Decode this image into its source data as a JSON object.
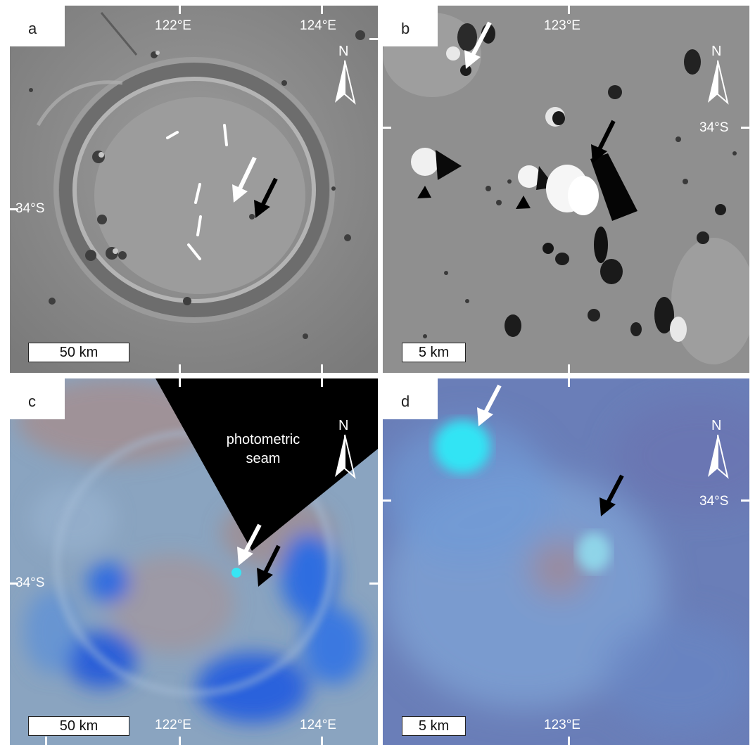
{
  "panels": {
    "a": {
      "label": "a",
      "scale_bar": "50 km",
      "north": "N",
      "lon_labels": [
        "122°E",
        "124°E"
      ],
      "lat_label": "34°S"
    },
    "b": {
      "label": "b",
      "scale_bar": "5 km",
      "north": "N",
      "lon_label": "123°E",
      "lat_label": "34°S"
    },
    "c": {
      "label": "c",
      "scale_bar": "50 km",
      "north": "N",
      "lon_labels": [
        "122°E",
        "124°E"
      ],
      "lat_label": "34°S",
      "seam_line1": "photometric",
      "seam_line2": "seam"
    },
    "d": {
      "label": "d",
      "scale_bar": "5 km",
      "north": "N",
      "lon_label": "123°E",
      "lat_label": "34°S"
    }
  },
  "colors": {
    "gray_surface": "#8e8e8e",
    "crater_floor": "#9a9a9a",
    "color_base": "#8aa6c2",
    "blue_deposit": "#2a66d8",
    "cyan_spot": "#35e0f2",
    "red_tint": "#b08a80",
    "seam": "#000000"
  }
}
